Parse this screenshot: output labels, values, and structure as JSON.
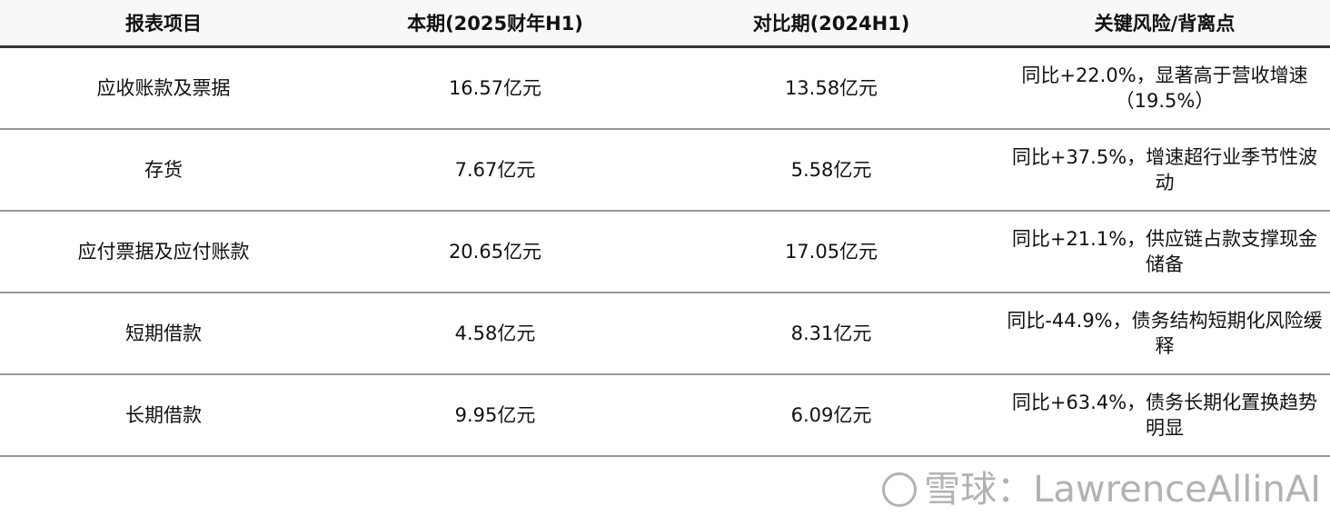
{
  "table": {
    "headers": [
      "报表项目",
      "本期(2025财年H1)",
      "对比期(2024H1)",
      "关键风险/背离点"
    ],
    "rows": [
      {
        "item": "应收账款及票据",
        "current": "16.57亿元",
        "prior": "13.58亿元",
        "note": "同比+22.0%，显著高于营收增速（19.5%）"
      },
      {
        "item": "存货",
        "current": "7.67亿元",
        "prior": "5.58亿元",
        "note": "同比+37.5%，增速超行业季节性波动"
      },
      {
        "item": "应付票据及应付账款",
        "current": "20.65亿元",
        "prior": "17.05亿元",
        "note": "同比+21.1%，供应链占款支撑现金储备"
      },
      {
        "item": "短期借款",
        "current": "4.58亿元",
        "prior": "8.31亿元",
        "note": "同比-44.9%，债务结构短期化风险缓释"
      },
      {
        "item": "长期借款",
        "current": "9.95亿元",
        "prior": "6.09亿元",
        "note": "同比+63.4%，债务长期化置换趋势明显"
      }
    ]
  },
  "watermark": "雪球：LawrenceAllinAI"
}
